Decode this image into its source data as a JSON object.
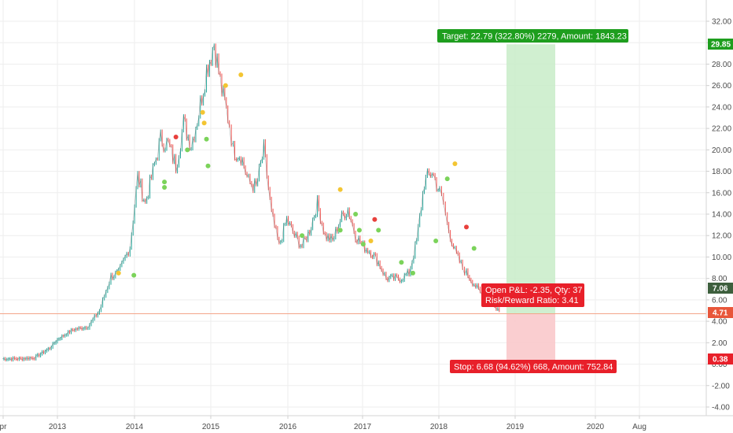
{
  "colors": {
    "up": "#26a69a",
    "down": "#ef5350",
    "target_fill": "#c8ecc8",
    "stop_fill": "#f9c9cb",
    "target_label": "#1e9e1e",
    "stop_label": "#e8202a",
    "last_price_badge": "#3d5f3d",
    "hline": "#f4a58a",
    "marker_green": "#7bd35a",
    "marker_yellow": "#f3c532",
    "marker_red": "#e8403c"
  },
  "price_badges": {
    "target_price": "29.85",
    "last_price": "7.06",
    "hline_price": "4.71",
    "stop_price": "0.38"
  },
  "position_labels": {
    "target": "Target: 22.79 (322.80%) 2279, Amount: 1843.23",
    "stop": "Stop: 6.68 (94.62%) 668, Amount: 752.84",
    "open_pnl": "Open P&L: -2.35, Qty: 37",
    "risk_reward": "Risk/Reward Ratio: 3.41"
  },
  "chart_data": {
    "type": "line",
    "y_axis_ticks": [
      "32.00",
      "30.00",
      "28.00",
      "26.00",
      "24.00",
      "22.00",
      "20.00",
      "18.00",
      "16.00",
      "14.00",
      "12.00",
      "10.00",
      "8.00",
      "6.00",
      "4.00",
      "2.00",
      "0.00",
      "-2.00",
      "-4.00"
    ],
    "x_axis_ticks": [
      "pr",
      "2013",
      "2014",
      "2015",
      "2016",
      "2017",
      "2018",
      "2019",
      "2020",
      "Aug"
    ],
    "ylim": [
      -5,
      33.5
    ],
    "grid": true,
    "series": [
      {
        "x": [
          2012.28,
          2012.5,
          2012.7,
          2012.9,
          2013.0,
          2013.2,
          2013.4,
          2013.55,
          2013.7,
          2013.8,
          2013.95,
          2014.05,
          2014.15,
          2014.25,
          2014.35,
          2014.45,
          2014.55,
          2014.65,
          2014.75,
          2014.85,
          2014.95,
          2015.05,
          2015.15,
          2015.25,
          2015.3,
          2015.4,
          2015.5,
          2015.6,
          2015.7,
          2015.8,
          2015.9,
          2016.0,
          2016.1,
          2016.2,
          2016.3,
          2016.4,
          2016.5,
          2016.6,
          2016.7,
          2016.8,
          2016.9,
          2017.0,
          2017.1,
          2017.2,
          2017.3,
          2017.4,
          2017.5,
          2017.6,
          2017.7,
          2017.8,
          2017.9,
          2018.0,
          2018.05,
          2018.1,
          2018.2,
          2018.3,
          2018.35,
          2018.45,
          2018.55,
          2018.62,
          2018.7,
          2018.78
        ],
        "values": [
          0.5,
          0.5,
          0.6,
          1.5,
          2.3,
          3.2,
          3.5,
          5.0,
          8.2,
          8.5,
          11.0,
          17.5,
          15.0,
          18.0,
          21.0,
          20.5,
          18.5,
          22.5,
          20.5,
          23.5,
          27.5,
          30.0,
          25.5,
          22.5,
          20.0,
          19.5,
          17.0,
          16.5,
          20.0,
          14.0,
          11.0,
          13.5,
          12.0,
          11.0,
          12.5,
          15.0,
          12.0,
          11.5,
          13.5,
          14.5,
          12.0,
          11.0,
          10.5,
          9.5,
          8.0,
          8.0,
          8.0,
          8.5,
          11.5,
          17.0,
          18.0,
          16.0,
          15.0,
          13.0,
          10.5,
          9.0,
          8.5,
          7.5,
          6.5,
          6.2,
          5.5,
          5.0
        ]
      }
    ]
  }
}
